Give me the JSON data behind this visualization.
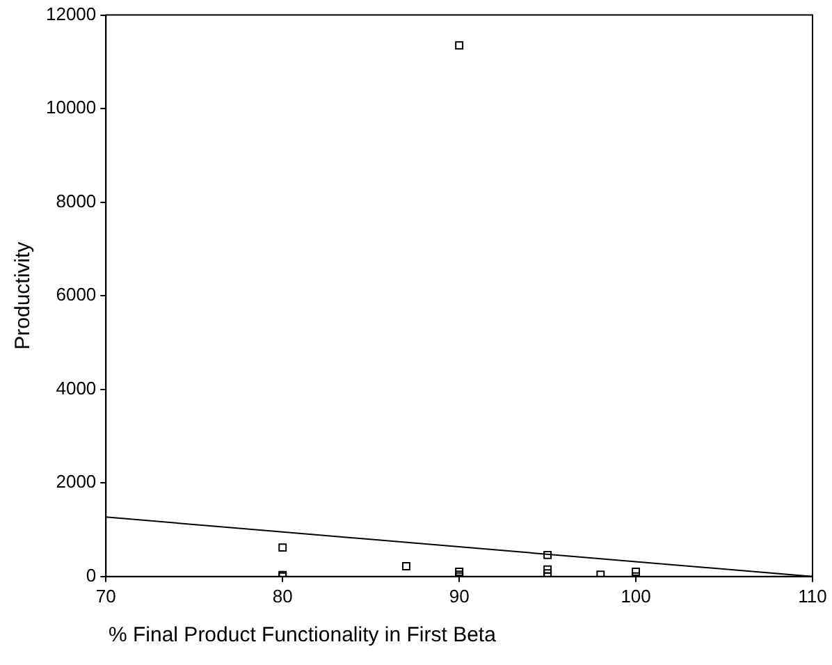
{
  "chart_data": {
    "type": "scatter",
    "xlabel": "% Final Product Functionality in First Beta",
    "ylabel": "Productivity",
    "xlim": [
      70,
      110
    ],
    "xticks": [
      70,
      80,
      90,
      100,
      110
    ],
    "ylim": [
      0,
      12000
    ],
    "yticks": [
      0,
      2000,
      4000,
      6000,
      8000,
      10000,
      12000
    ],
    "grid": false,
    "legend": false,
    "marker": "square",
    "series": [
      {
        "type": "scatter",
        "color": "#000000",
        "x": [
          90,
          80,
          80,
          80,
          87,
          90,
          90,
          90,
          95,
          95,
          95,
          95,
          98,
          100,
          100
        ],
        "values": [
          11350,
          620,
          30,
          0,
          220,
          100,
          40,
          0,
          460,
          150,
          70,
          0,
          40,
          100,
          0
        ]
      },
      {
        "type": "line",
        "color": "#000000",
        "marker": "none",
        "x": [
          70,
          110
        ],
        "values": [
          1270,
          0
        ]
      }
    ]
  }
}
